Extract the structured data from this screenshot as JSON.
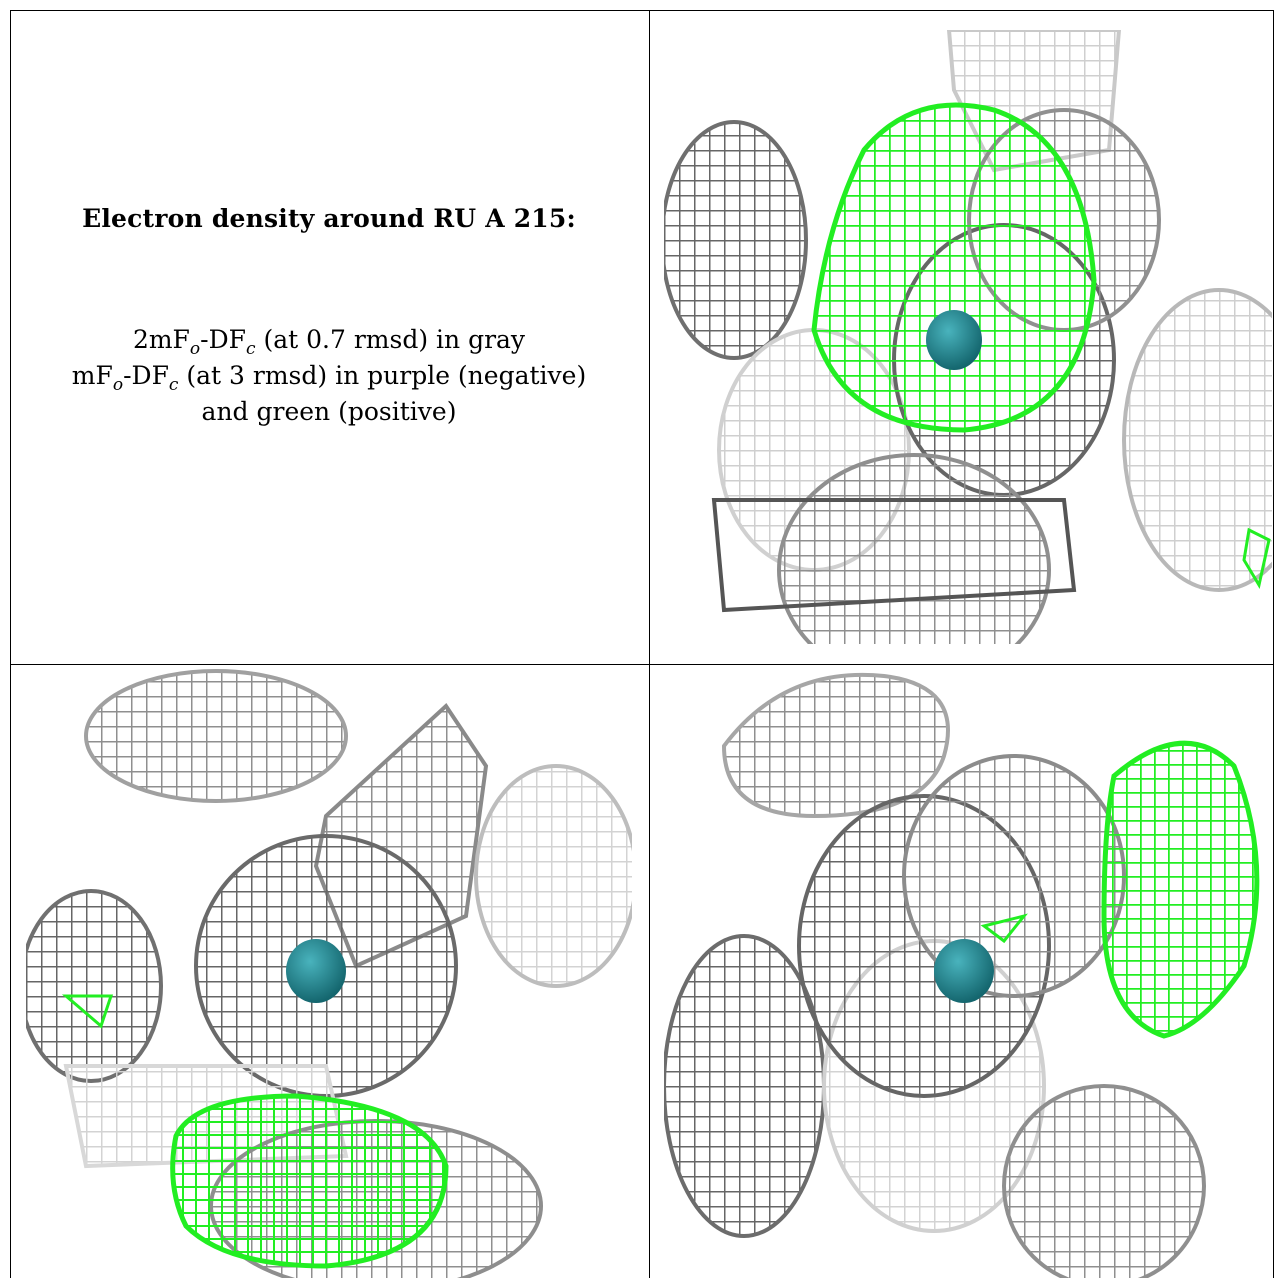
{
  "caption": {
    "title": "Electron density around RU A 215:",
    "line1": {
      "a": "2mF",
      "sub1": "o",
      "b": "-DF",
      "sub2": "c",
      "c": " (at 0.7 rmsd) in gray"
    },
    "line2": {
      "a": "mF",
      "sub1": "o",
      "b": "-DF",
      "sub2": "c",
      "c": " (at 3 rmsd) in purple (negative)"
    },
    "line3": "and green (positive)"
  },
  "colors": {
    "gray_mesh": "#9a9a9a",
    "dark_mesh": "#6b6b6b",
    "light_mesh": "#d2d2d2",
    "positive": "#22ee22",
    "atom": "#1f8a94"
  }
}
